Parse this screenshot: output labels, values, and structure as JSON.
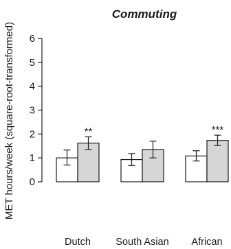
{
  "chart_data": {
    "type": "bar",
    "title": "Commuting",
    "ylabel": "MET hours/week (square-root-transformed)",
    "xlabel": "",
    "ylim": [
      0,
      6
    ],
    "yticks": [
      0,
      1,
      2,
      3,
      4,
      5,
      6
    ],
    "categories": [
      "Dutch",
      "South Asian",
      "African"
    ],
    "series": [
      {
        "color": "#ffffff",
        "values": [
          1.0,
          0.93,
          1.08
        ],
        "err_low": [
          0.7,
          0.68,
          0.87
        ],
        "err_high": [
          1.33,
          1.18,
          1.3
        ]
      },
      {
        "color": "#d6d6d6",
        "values": [
          1.62,
          1.35,
          1.73
        ],
        "err_low": [
          1.35,
          1.0,
          1.52
        ],
        "err_high": [
          1.88,
          1.7,
          1.95
        ]
      }
    ],
    "annotations": [
      "**",
      "",
      "***"
    ],
    "grid": false
  }
}
